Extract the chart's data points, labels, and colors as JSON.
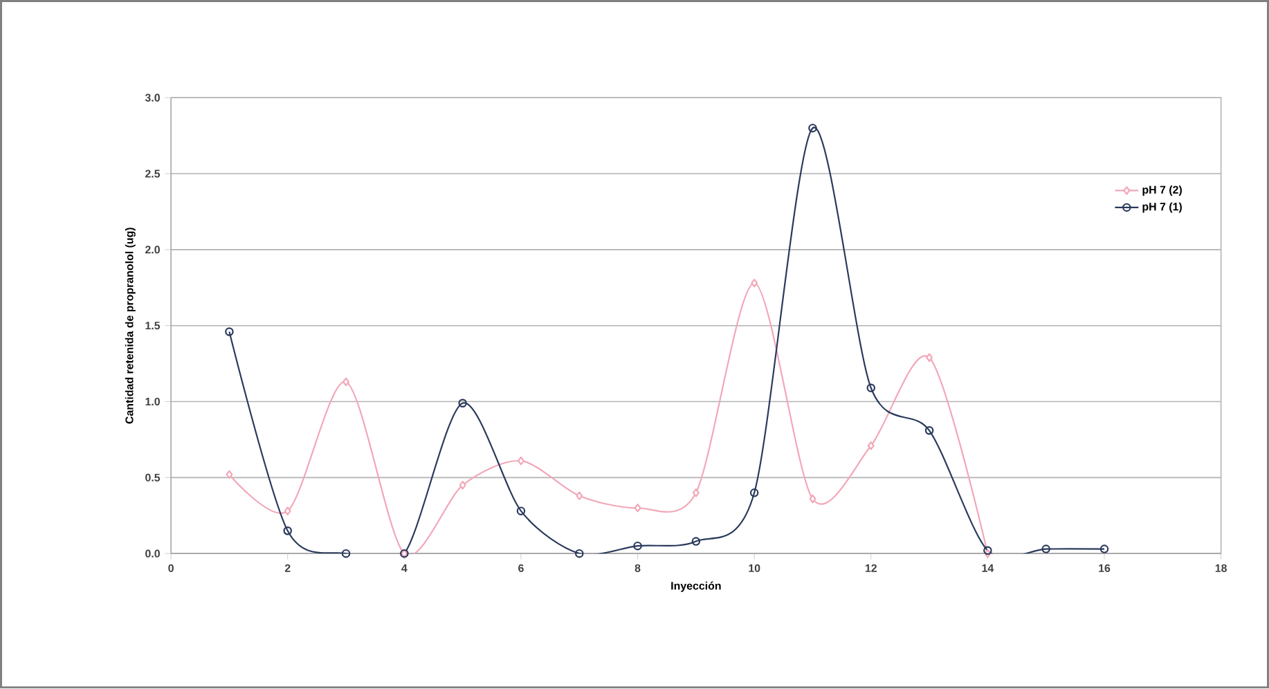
{
  "chart_data": {
    "type": "line",
    "xlabel": "Inyección",
    "ylabel": "Cantidad retenida de propranolol (ug)",
    "x": [
      1,
      2,
      3,
      4,
      5,
      6,
      7,
      8,
      9,
      10,
      11,
      12,
      13,
      14,
      15,
      16
    ],
    "series": [
      {
        "name": "pH 7 (2)",
        "color": "#f2a7b8",
        "marker": "diamond",
        "values": [
          0.52,
          0.28,
          1.13,
          0.0,
          0.45,
          0.61,
          0.38,
          0.3,
          0.4,
          1.78,
          0.36,
          0.71,
          1.29,
          0.0,
          null,
          null
        ]
      },
      {
        "name": "pH 7 (1)",
        "color": "#2a3a5c",
        "marker": "circle",
        "values": [
          1.46,
          0.15,
          0.0,
          0.0,
          0.99,
          0.28,
          0.0,
          0.05,
          0.08,
          0.4,
          2.8,
          1.09,
          0.81,
          0.02,
          0.03,
          0.03
        ]
      }
    ],
    "xlim": [
      0,
      18
    ],
    "xticks": [
      0,
      2,
      4,
      6,
      8,
      10,
      12,
      14,
      16,
      18
    ],
    "ylim": [
      0,
      3.0
    ],
    "yticks": [
      {
        "value": 0,
        "label": "0.0"
      },
      {
        "value": 0.5,
        "label": "0.5"
      },
      {
        "value": 1.0,
        "label": "1.0"
      },
      {
        "value": 1.5,
        "label": "1.5"
      },
      {
        "value": 2.0,
        "label": "2.0"
      },
      {
        "value": 2.5,
        "label": "2.5"
      },
      {
        "value": 3.0,
        "label": "3.0"
      }
    ],
    "grid": "y",
    "legend": "top right"
  }
}
